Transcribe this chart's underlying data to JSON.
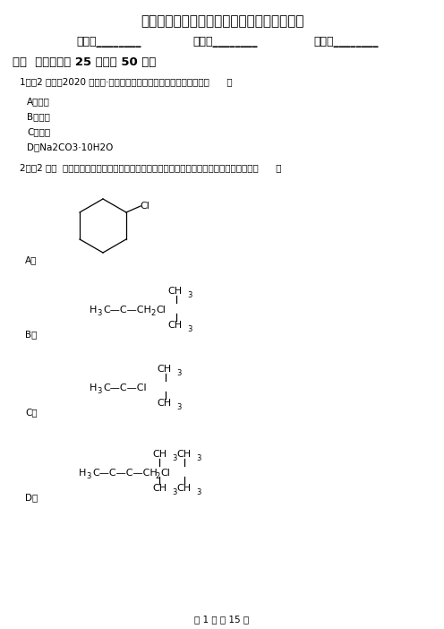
{
  "title": "江西省赣州市高一上学期第二次月考化学试卷",
  "name_label": "姓名：________",
  "class_label": "班级：________",
  "score_label": "成绩：________",
  "section1_title": "一、  选择题（共 25 题；共 50 分）",
  "q1_text": "1．〔2 分〕（2020 高二下·淳安期中）下列物质中属于纯净物的是（      ）",
  "q1_A": "A．碘酒",
  "q1_B": "B．氨水",
  "q1_C": "C．石油",
  "q1_D": "D．Na2CO3·10H2O",
  "q2_text": "2．〔2 分〕  卤代烃的制备有多种方法，下列卤代烃不适合由相应的烃经卤代反应制得的是（      ）",
  "label_A": "A．",
  "label_B": "B．",
  "label_C": "C．",
  "label_D": "D．",
  "page_footer": "第 1 页 共 15 页",
  "bg_color": "#ffffff",
  "text_color": "#000000"
}
